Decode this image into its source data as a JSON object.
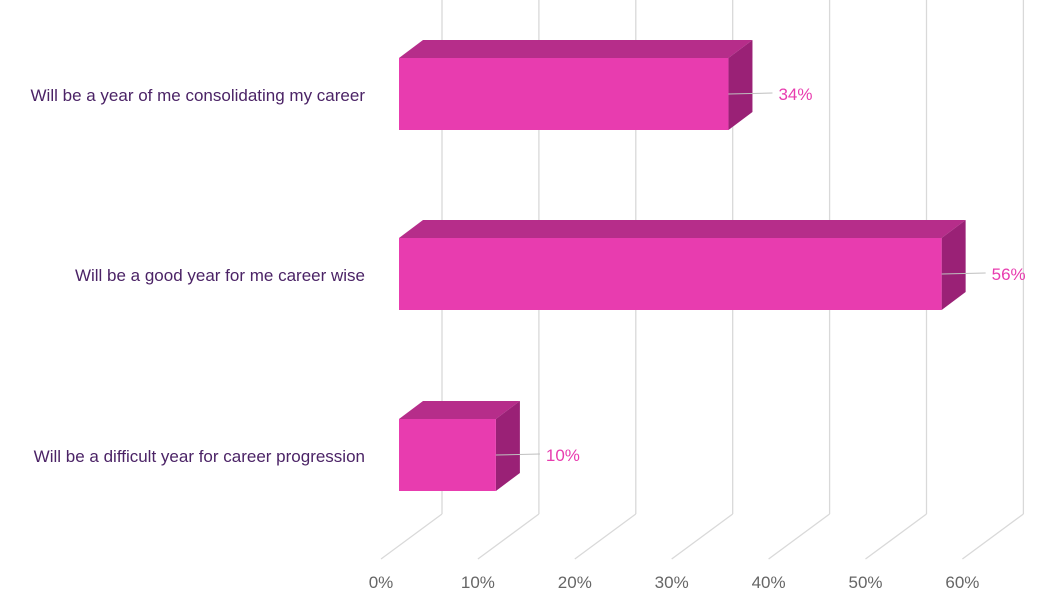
{
  "chart_data": {
    "type": "bar",
    "orientation": "horizontal",
    "style": "3d",
    "categories": [
      "Will be a year of me consolidating my career",
      "Will be a good year for me career wise",
      "Will be a difficult year for career progression"
    ],
    "values": [
      34,
      56,
      10
    ],
    "data_labels": [
      "34%",
      "56%",
      "10%"
    ],
    "x_ticks": [
      "0%",
      "10%",
      "20%",
      "30%",
      "40%",
      "50%",
      "60%"
    ],
    "xlim": [
      0,
      60
    ],
    "grid": true,
    "legend": "none",
    "colors": {
      "bar_front": "#E83CAF",
      "bar_top": "#B62D8A",
      "bar_side": "#9A2176",
      "category_text": "#4B2366",
      "data_label_text": "#E83CAF",
      "tick_text": "#666666",
      "grid": "#D9D9D9"
    }
  }
}
